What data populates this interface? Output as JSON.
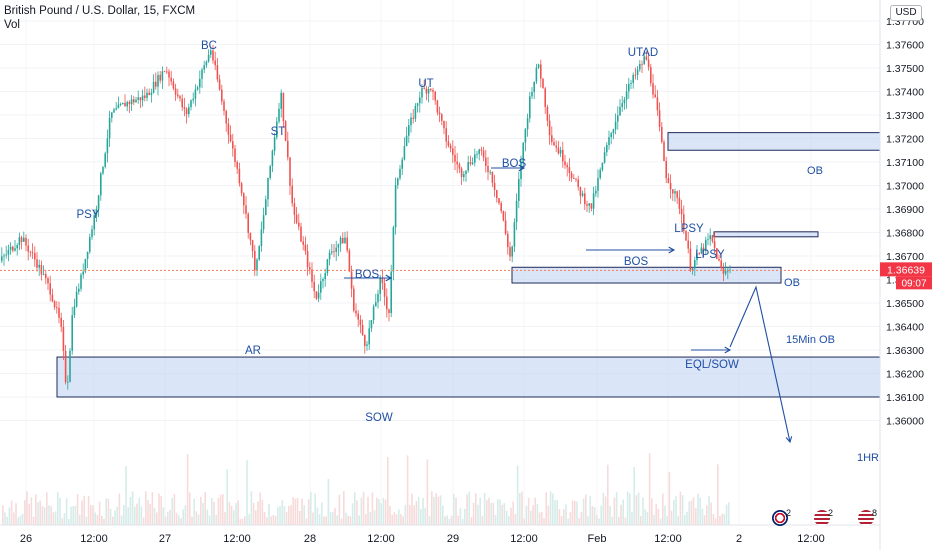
{
  "header": {
    "symbol": "British Pound / U.S. Dollar, 15, FXCM",
    "volume_label": "Vol"
  },
  "currency_button": "USD",
  "colors": {
    "up": "#26a69a",
    "down": "#ef5350",
    "zone_fill": "#bbcff0",
    "zone_stroke": "#1e2a5a",
    "annotation": "#1f4fa3",
    "price_line": "#f57c5b"
  },
  "last_price": {
    "value": "1.36639",
    "countdown": "09:07"
  },
  "event_icons": [
    {
      "name": "uk-flag-icon",
      "count": "2"
    },
    {
      "name": "us-flag-icon",
      "count": "2"
    },
    {
      "name": "us-flag-icon",
      "count": "8"
    }
  ],
  "chart_data": {
    "type": "candlestick",
    "symbol": "GBPUSD",
    "timeframe": "15",
    "ylim": [
      1.3595,
      1.3772
    ],
    "yticks": [
      "1.37700",
      "1.37600",
      "1.37500",
      "1.37400",
      "1.37300",
      "1.37200",
      "1.37100",
      "1.37000",
      "1.36900",
      "1.36800",
      "1.36700",
      "1.36600",
      "1.36500",
      "1.36400",
      "1.36300",
      "1.36200",
      "1.36100",
      "1.36000"
    ],
    "xticks": [
      "26",
      "12:00",
      "27",
      "12:00",
      "28",
      "12:00",
      "29",
      "12:00",
      "Feb",
      "12:00",
      "2",
      "12:00"
    ],
    "price_path": [
      [
        0,
        1.3668
      ],
      [
        20,
        1.3678
      ],
      [
        35,
        1.3668
      ],
      [
        50,
        1.3655
      ],
      [
        60,
        1.364
      ],
      [
        66,
        1.3612
      ],
      [
        72,
        1.3648
      ],
      [
        80,
        1.366
      ],
      [
        95,
        1.369
      ],
      [
        110,
        1.373
      ],
      [
        125,
        1.3735
      ],
      [
        145,
        1.3738
      ],
      [
        165,
        1.375
      ],
      [
        185,
        1.373
      ],
      [
        210,
        1.3758
      ],
      [
        225,
        1.3728
      ],
      [
        240,
        1.37
      ],
      [
        255,
        1.3663
      ],
      [
        270,
        1.371
      ],
      [
        280,
        1.374
      ],
      [
        292,
        1.369
      ],
      [
        305,
        1.367
      ],
      [
        315,
        1.3652
      ],
      [
        330,
        1.3672
      ],
      [
        345,
        1.3678
      ],
      [
        352,
        1.365
      ],
      [
        365,
        1.3632
      ],
      [
        380,
        1.366
      ],
      [
        388,
        1.3645
      ],
      [
        395,
        1.37
      ],
      [
        405,
        1.372
      ],
      [
        420,
        1.374
      ],
      [
        430,
        1.3742
      ],
      [
        445,
        1.372
      ],
      [
        460,
        1.3705
      ],
      [
        478,
        1.3715
      ],
      [
        490,
        1.3705
      ],
      [
        500,
        1.369
      ],
      [
        510,
        1.3668
      ],
      [
        520,
        1.371
      ],
      [
        530,
        1.374
      ],
      [
        538,
        1.3752
      ],
      [
        550,
        1.372
      ],
      [
        565,
        1.371
      ],
      [
        578,
        1.3698
      ],
      [
        590,
        1.369
      ],
      [
        605,
        1.3715
      ],
      [
        620,
        1.3735
      ],
      [
        632,
        1.3745
      ],
      [
        645,
        1.3755
      ],
      [
        655,
        1.3735
      ],
      [
        665,
        1.3705
      ],
      [
        680,
        1.369
      ],
      [
        690,
        1.3665
      ],
      [
        700,
        1.3672
      ],
      [
        710,
        1.3678
      ],
      [
        722,
        1.3662
      ],
      [
        730,
        1.3666
      ]
    ],
    "zones": [
      {
        "label": "OB",
        "x_from": "Feb 12:00",
        "x_to": "open",
        "price_top": 1.37225,
        "price_bottom": 1.3715
      },
      {
        "label": "OB",
        "x_from": "Feb 14:00",
        "x_to": "Feb 2 02:00",
        "price_top": 1.36803,
        "price_bottom": 1.36788
      },
      {
        "label": "15Min OB",
        "x_from": "29 06:00",
        "x_to": "Feb 20:00",
        "price_top": 1.36652,
        "price_bottom": 1.36585
      },
      {
        "label": "1HR",
        "x_from": "26 06:00",
        "x_to": "open",
        "price_top": 1.3627,
        "price_bottom": 1.361
      }
    ],
    "annotations": [
      {
        "text": "PSY"
      },
      {
        "text": "BC"
      },
      {
        "text": "AR"
      },
      {
        "text": "ST"
      },
      {
        "text": "BOS"
      },
      {
        "text": "SOW"
      },
      {
        "text": "UT"
      },
      {
        "text": "BOS"
      },
      {
        "text": "UTAD"
      },
      {
        "text": "LPSY"
      },
      {
        "text": "BOS"
      },
      {
        "text": "LPSY"
      },
      {
        "text": "EQL/SOW"
      }
    ]
  }
}
